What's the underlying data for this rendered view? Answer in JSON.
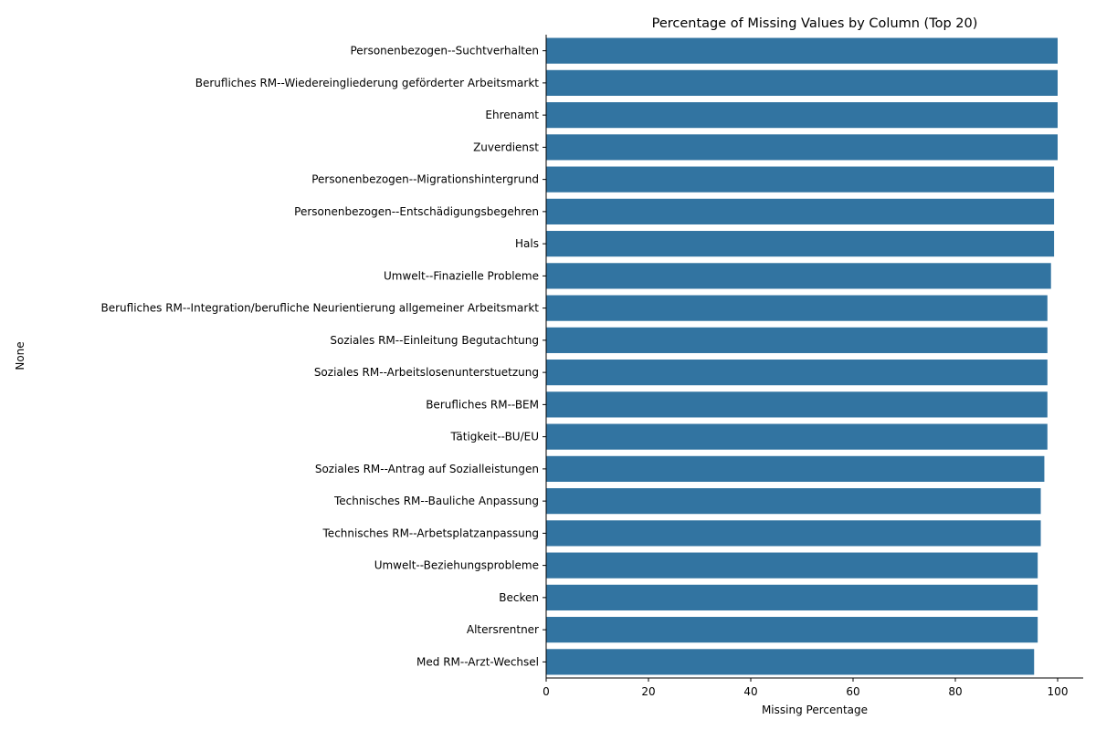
{
  "chart_data": {
    "type": "bar",
    "orientation": "horizontal",
    "title": "Percentage of Missing Values by Column (Top 20)",
    "xlabel": "Missing Percentage",
    "ylabel": "None",
    "xlim": [
      0,
      105
    ],
    "xticks": [
      0,
      20,
      40,
      60,
      80,
      100
    ],
    "grid": false,
    "bar_color": "#3274a1",
    "categories": [
      "Personenbezogen--Suchtverhalten",
      "Berufliches RM--Wiedereingliederung geförderter Arbeitsmarkt",
      "Ehrenamt",
      "Zuverdienst",
      "Personenbezogen--Migrationshintergrund",
      "Personenbezogen--Entschädigungsbegehren",
      "Hals",
      "Umwelt--Finazielle Probleme",
      "Berufliches RM--Integration/berufliche Neurientierung allgemeiner Arbeitsmarkt",
      "Soziales RM--Einleitung Begutachtung",
      "Soziales RM--Arbeitslosenunterstuetzung",
      "Berufliches RM--BEM",
      "Tätigkeit--BU/EU",
      "Soziales RM--Antrag auf Sozialleistungen",
      "Technisches RM--Bauliche Anpassung",
      "Technisches RM--Arbetsplatzanpassung",
      "Umwelt--Beziehungsprobleme",
      "Becken",
      "Altersrentner",
      "Med RM--Arzt-Wechsel"
    ],
    "values": [
      100.0,
      100.0,
      100.0,
      100.0,
      99.3,
      99.3,
      99.3,
      98.7,
      98.0,
      98.0,
      98.0,
      98.0,
      98.0,
      97.4,
      96.7,
      96.7,
      96.1,
      96.1,
      96.1,
      95.4
    ]
  }
}
